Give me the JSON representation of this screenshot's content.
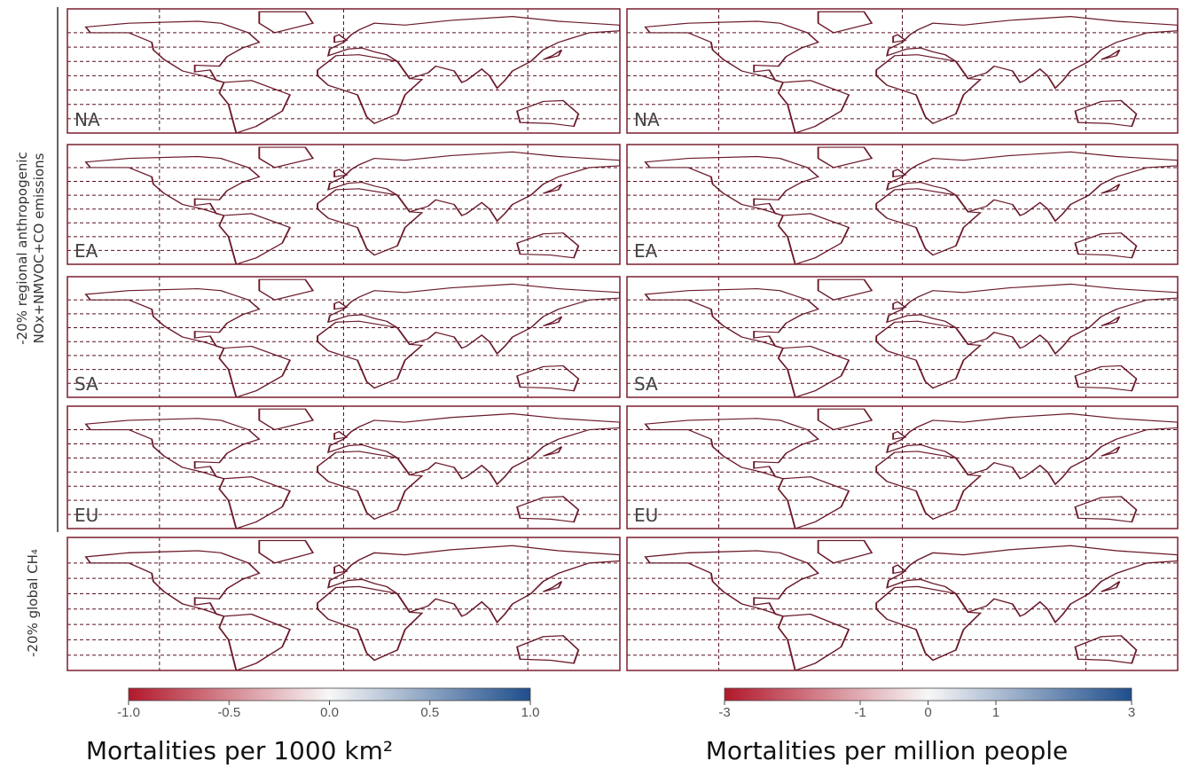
{
  "row_labels": {
    "regional": [
      "-20% regional anthropogenic",
      "NOx+NMVOC+CO emissions"
    ],
    "global": "-20% global CH₄"
  },
  "panel_labels": [
    "NA",
    "EA",
    "SA",
    "EU"
  ],
  "colorbars": [
    {
      "title": "Mortalities per 1000 km²",
      "lim": [
        -1,
        1
      ],
      "colors": [
        "#b2182b",
        "#f7f7f7",
        "#1f4e8c"
      ],
      "ticks": [
        {
          "value": -1,
          "label": "-1.0"
        },
        {
          "value": -0.5,
          "label": "-0.5"
        },
        {
          "value": 0,
          "label": "0.0"
        },
        {
          "value": 0.5,
          "label": "0.5"
        },
        {
          "value": 1,
          "label": "1.0"
        }
      ]
    },
    {
      "title": "Mortalities per million people",
      "lim": [
        -3,
        3
      ],
      "colors": [
        "#b2182b",
        "#f7f7f7",
        "#1f4e8c"
      ],
      "ticks": [
        -3,
        -1,
        0,
        1,
        3
      ]
    }
  ]
}
